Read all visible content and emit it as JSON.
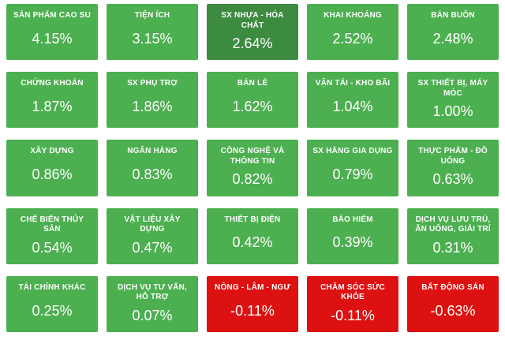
{
  "colors": {
    "green": "#4caf50",
    "dark_green": "#3d8b40",
    "red": "#dd1111",
    "background": "#ffffff",
    "text": "#ffffff"
  },
  "heatmap": {
    "tiles": [
      {
        "label": "SẢN PHẨM CAO SU",
        "value": "4.15%",
        "color": "green"
      },
      {
        "label": "TIỆN ÍCH",
        "value": "3.15%",
        "color": "green"
      },
      {
        "label": "SX NHỰA - HÓA CHẤT",
        "value": "2.64%",
        "color": "dark_green"
      },
      {
        "label": "KHAI KHOÁNG",
        "value": "2.52%",
        "color": "green"
      },
      {
        "label": "BÁN BUÔN",
        "value": "2.48%",
        "color": "green"
      },
      {
        "label": "CHỨNG KHOÁN",
        "value": "1.87%",
        "color": "green"
      },
      {
        "label": "SX PHỤ TRỢ",
        "value": "1.86%",
        "color": "green"
      },
      {
        "label": "BÁN LẺ",
        "value": "1.62%",
        "color": "green"
      },
      {
        "label": "VẬN TẢI - KHO BÃI",
        "value": "1.04%",
        "color": "green"
      },
      {
        "label": "SX THIẾT BỊ, MÁY MÓC",
        "value": "1.00%",
        "color": "green"
      },
      {
        "label": "XÂY DỰNG",
        "value": "0.86%",
        "color": "green"
      },
      {
        "label": "NGÂN HÀNG",
        "value": "0.83%",
        "color": "green"
      },
      {
        "label": "CÔNG NGHỆ VÀ THÔNG TIN",
        "value": "0.82%",
        "color": "green"
      },
      {
        "label": "SX HÀNG GIA DỤNG",
        "value": "0.79%",
        "color": "green"
      },
      {
        "label": "THỰC PHẨM - ĐỒ UỐNG",
        "value": "0.63%",
        "color": "green"
      },
      {
        "label": "CHẾ BIẾN THỦY SẢN",
        "value": "0.54%",
        "color": "green"
      },
      {
        "label": "VẬT LIỆU XÂY DỰNG",
        "value": "0.47%",
        "color": "green"
      },
      {
        "label": "THIẾT BỊ ĐIỆN",
        "value": "0.42%",
        "color": "green"
      },
      {
        "label": "BẢO HIỂM",
        "value": "0.39%",
        "color": "green"
      },
      {
        "label": "DỊCH VỤ LƯU TRÚ, ĂN UỐNG, GIẢI TRÍ",
        "value": "0.31%",
        "color": "green"
      },
      {
        "label": "TÀI CHÍNH KHÁC",
        "value": "0.25%",
        "color": "green"
      },
      {
        "label": "DỊCH VỤ TƯ VẤN, HỖ TRỢ",
        "value": "0.07%",
        "color": "green"
      },
      {
        "label": "NÔNG - LÂM - NGƯ",
        "value": "-0.11%",
        "color": "red"
      },
      {
        "label": "CHĂM SÓC SỨC KHỎE",
        "value": "-0.11%",
        "color": "red"
      },
      {
        "label": "BẤT ĐỘNG SẢN",
        "value": "-0.63%",
        "color": "red"
      }
    ]
  },
  "chart_data": {
    "type": "heatmap",
    "title": "",
    "layout": "5x5 grid of sector performance tiles",
    "unit": "%",
    "categories": [
      "SẢN PHẨM CAO SU",
      "TIỆN ÍCH",
      "SX NHỰA - HÓA CHẤT",
      "KHAI KHOÁNG",
      "BÁN BUÔN",
      "CHỨNG KHOÁN",
      "SX PHỤ TRỢ",
      "BÁN LẺ",
      "VẬN TẢI - KHO BÃI",
      "SX THIẾT BỊ, MÁY MÓC",
      "XÂY DỰNG",
      "NGÂN HÀNG",
      "CÔNG NGHỆ VÀ THÔNG TIN",
      "SX HÀNG GIA DỤNG",
      "THỰC PHẨM - ĐỒ UỐNG",
      "CHẾ BIẾN THỦY SẢN",
      "VẬT LIỆU XÂY DỰNG",
      "THIẾT BỊ ĐIỆN",
      "BẢO HIỂM",
      "DỊCH VỤ LƯU TRÚ, ĂN UỐNG, GIẢI TRÍ",
      "TÀI CHÍNH KHÁC",
      "DỊCH VỤ TƯ VẤN, HỖ TRỢ",
      "NÔNG - LÂM - NGƯ",
      "CHĂM SÓC SỨC KHỎE",
      "BẤT ĐỘNG SẢN"
    ],
    "values": [
      4.15,
      3.15,
      2.64,
      2.52,
      2.48,
      1.87,
      1.86,
      1.62,
      1.04,
      1.0,
      0.86,
      0.83,
      0.82,
      0.79,
      0.63,
      0.54,
      0.47,
      0.42,
      0.39,
      0.31,
      0.25,
      0.07,
      -0.11,
      -0.11,
      -0.63
    ],
    "color_coding": "green = positive change, red = negative change",
    "legend": "none"
  }
}
